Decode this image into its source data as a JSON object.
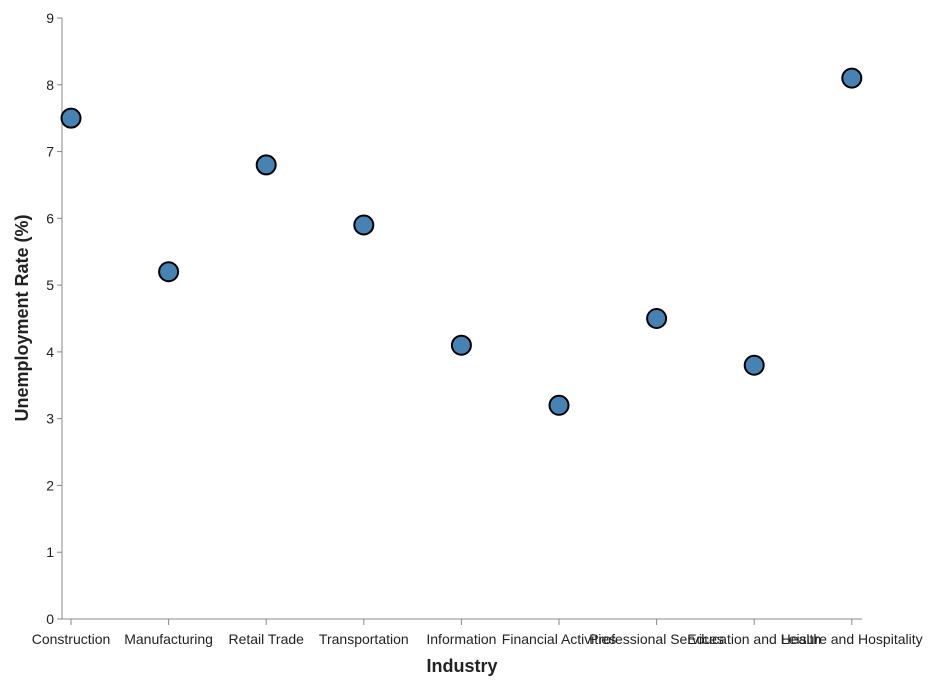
{
  "chart_data": {
    "type": "scatter",
    "xlabel": "Industry",
    "ylabel": "Unemployment Rate (%)",
    "ylim": [
      0,
      9
    ],
    "yticks": [
      0,
      1,
      2,
      3,
      4,
      5,
      6,
      7,
      8,
      9
    ],
    "grid": false,
    "categories": [
      "Construction",
      "Manufacturing",
      "Retail Trade",
      "Transportation",
      "Information",
      "Financial Activities",
      "Professional Services",
      "Education and Health",
      "Leisure and Hospitality"
    ],
    "values": [
      7.5,
      5.2,
      6.8,
      5.9,
      4.1,
      3.2,
      4.5,
      3.8,
      8.1
    ],
    "point_color": "#4682b4",
    "point_stroke": "#000000"
  }
}
